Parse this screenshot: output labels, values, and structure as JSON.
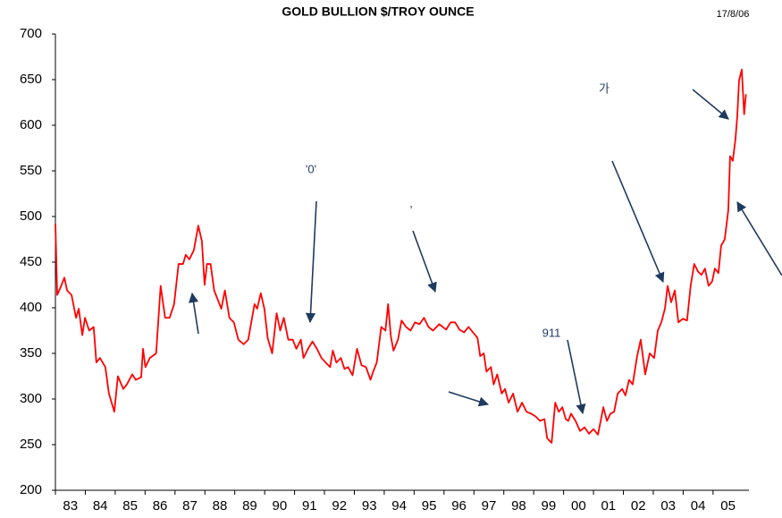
{
  "chart_data": {
    "type": "line",
    "title": "GOLD BULLION $/TROY OUNCE",
    "subtitle": "17/8/06",
    "annotations": [
      "'0'",
      ",",
      "911",
      "가"
    ],
    "x": [
      1983.0,
      1983.06,
      1983.18,
      1983.3,
      1983.39,
      1983.54,
      1983.69,
      1983.78,
      1983.9,
      1983.99,
      1984.13,
      1984.28,
      1984.37,
      1984.49,
      1984.67,
      1984.79,
      1984.97,
      1985.09,
      1985.27,
      1985.39,
      1985.57,
      1985.69,
      1985.87,
      1985.93,
      1986.01,
      1986.16,
      1986.37,
      1986.52,
      1986.67,
      1986.82,
      1986.97,
      1987.12,
      1987.27,
      1987.36,
      1987.48,
      1987.63,
      1987.78,
      1987.9,
      1987.99,
      1988.07,
      1988.19,
      1988.31,
      1988.43,
      1988.55,
      1988.67,
      1988.82,
      1988.97,
      1989.12,
      1989.3,
      1989.45,
      1989.66,
      1989.75,
      1989.87,
      1989.99,
      1990.1,
      1990.25,
      1990.4,
      1990.52,
      1990.64,
      1990.79,
      1990.94,
      1991.06,
      1991.21,
      1991.3,
      1991.45,
      1991.6,
      1991.75,
      1991.9,
      1992.04,
      1992.19,
      1992.28,
      1992.4,
      1992.55,
      1992.67,
      1992.79,
      1992.94,
      1993.09,
      1993.24,
      1993.39,
      1993.54,
      1993.63,
      1993.75,
      1993.9,
      1994.04,
      1994.13,
      1994.22,
      1994.31,
      1994.46,
      1994.58,
      1994.73,
      1994.88,
      1995.03,
      1995.18,
      1995.33,
      1995.48,
      1995.63,
      1995.84,
      1996.07,
      1996.22,
      1996.37,
      1996.52,
      1996.67,
      1996.82,
      1996.97,
      1997.12,
      1997.21,
      1997.33,
      1997.42,
      1997.57,
      1997.66,
      1997.78,
      1997.93,
      1998.04,
      1998.16,
      1998.31,
      1998.46,
      1998.61,
      1998.76,
      1998.91,
      1999.06,
      1999.21,
      1999.36,
      1999.45,
      1999.6,
      1999.72,
      1999.84,
      1999.96,
      2000.07,
      2000.16,
      2000.25,
      2000.4,
      2000.55,
      2000.7,
      2000.85,
      2001.0,
      2001.15,
      2001.33,
      2001.45,
      2001.57,
      2001.69,
      2001.81,
      2001.96,
      2002.07,
      2002.19,
      2002.31,
      2002.46,
      2002.58,
      2002.73,
      2002.88,
      2003.03,
      2003.15,
      2003.27,
      2003.39,
      2003.48,
      2003.6,
      2003.72,
      2003.84,
      2003.99,
      2004.13,
      2004.25,
      2004.37,
      2004.49,
      2004.61,
      2004.73,
      2004.85,
      2004.97,
      2005.06,
      2005.18,
      2005.27,
      2005.39,
      2005.51,
      2005.57,
      2005.66,
      2005.75,
      2005.81,
      2005.87,
      2005.96,
      2006.04,
      2006.1
    ],
    "series": [
      {
        "name": "Gold",
        "color": "#ff0000",
        "values": [
          492,
          414,
          423,
          433,
          419,
          414,
          389,
          399,
          370,
          389,
          375,
          379,
          340,
          345,
          335,
          306,
          286,
          325,
          311,
          316,
          327,
          321,
          324,
          355,
          335,
          345,
          350,
          424,
          389,
          389,
          404,
          448,
          448,
          458,
          453,
          463,
          490,
          473,
          425,
          448,
          448,
          419,
          409,
          399,
          419,
          389,
          384,
          365,
          360,
          365,
          404,
          399,
          416,
          399,
          367,
          350,
          394,
          375,
          389,
          365,
          365,
          355,
          365,
          345,
          355,
          363,
          355,
          345,
          340,
          335,
          353,
          340,
          345,
          333,
          335,
          326,
          355,
          337,
          335,
          321,
          330,
          340,
          379,
          375,
          404,
          369,
          353,
          365,
          386,
          379,
          375,
          384,
          382,
          389,
          379,
          375,
          382,
          376,
          384,
          384,
          376,
          373,
          379,
          373,
          367,
          347,
          350,
          330,
          335,
          316,
          327,
          306,
          311,
          296,
          306,
          286,
          296,
          286,
          284,
          281,
          276,
          278,
          257,
          252,
          296,
          286,
          291,
          278,
          276,
          284,
          276,
          265,
          269,
          262,
          267,
          261,
          291,
          276,
          284,
          286,
          306,
          311,
          304,
          321,
          316,
          347,
          365,
          327,
          350,
          345,
          375,
          384,
          399,
          424,
          406,
          419,
          384,
          388,
          386,
          424,
          448,
          440,
          436,
          443,
          424,
          429,
          443,
          438,
          468,
          475,
          507,
          566,
          561,
          585,
          610,
          649,
          661,
          612,
          634
        ]
      }
    ],
    "xlim": [
      1983,
      2006.2
    ],
    "xticks": [
      {
        "value": 1983,
        "label": "83"
      },
      {
        "value": 1984,
        "label": "84"
      },
      {
        "value": 1985,
        "label": "85"
      },
      {
        "value": 1986,
        "label": "86"
      },
      {
        "value": 1987,
        "label": "87"
      },
      {
        "value": 1988,
        "label": "88"
      },
      {
        "value": 1989,
        "label": "89"
      },
      {
        "value": 1990,
        "label": "90"
      },
      {
        "value": 1991,
        "label": "91"
      },
      {
        "value": 1992,
        "label": "92"
      },
      {
        "value": 1993,
        "label": "93"
      },
      {
        "value": 1994,
        "label": "94"
      },
      {
        "value": 1995,
        "label": "95"
      },
      {
        "value": 1996,
        "label": "96"
      },
      {
        "value": 1997,
        "label": "97"
      },
      {
        "value": 1998,
        "label": "98"
      },
      {
        "value": 1999,
        "label": "99"
      },
      {
        "value": 2000,
        "label": "00"
      },
      {
        "value": 2001,
        "label": "01"
      },
      {
        "value": 2002,
        "label": "02"
      },
      {
        "value": 2003,
        "label": "03"
      },
      {
        "value": 2004,
        "label": "04"
      },
      {
        "value": 2005,
        "label": "05"
      }
    ],
    "ylim": [
      200,
      700
    ],
    "yticks": [
      200,
      250,
      300,
      350,
      400,
      450,
      500,
      550,
      600,
      650,
      700
    ],
    "grid": false
  }
}
